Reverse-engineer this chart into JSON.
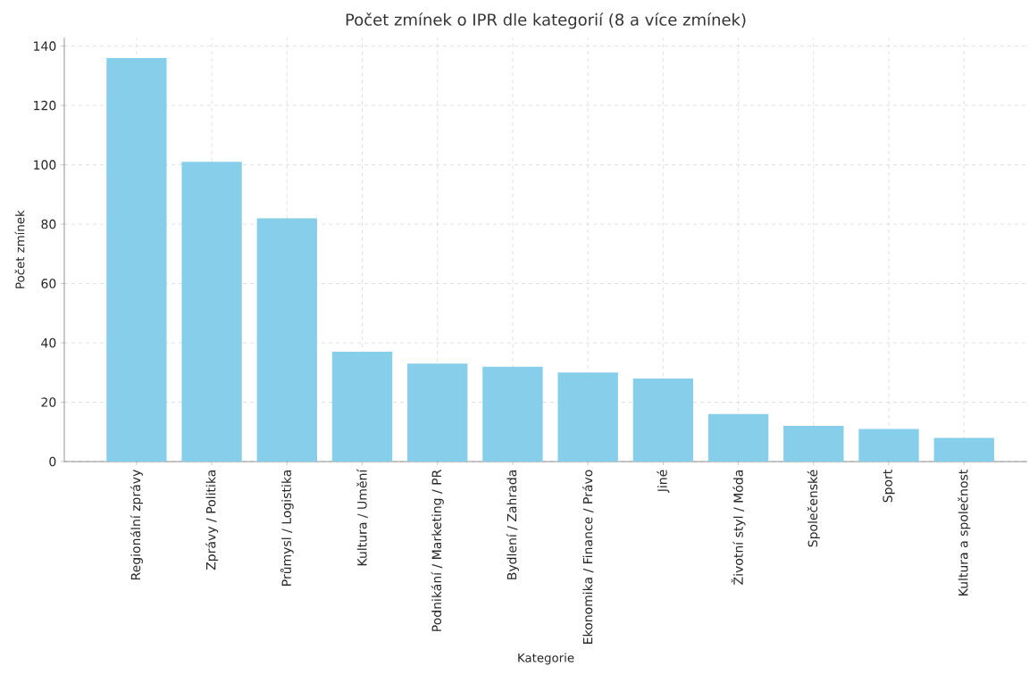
{
  "chart_data": {
    "type": "bar",
    "title": "Počet zmínek o IPR dle kategorií (8 a více zmínek)",
    "xlabel": "Kategorie",
    "ylabel": "Počet zmínek",
    "categories": [
      "Regionální zprávy",
      "Zprávy / Politika",
      "Průmysl / Logistika",
      "Kultura / Umění",
      "Podnikání / Marketing / PR",
      "Bydlení / Zahrada",
      "Ekonomika / Finance / Právo",
      "Jiné",
      "Životní styl / Móda",
      "Společenské",
      "Sport",
      "Kultura a společnost"
    ],
    "values": [
      136,
      101,
      82,
      37,
      33,
      32,
      30,
      28,
      16,
      12,
      11,
      8
    ],
    "color": "#87ceeb",
    "ylim": [
      0,
      142.8
    ],
    "yticks": [
      0,
      20,
      40,
      60,
      80,
      100,
      120,
      140
    ],
    "grid": true
  }
}
